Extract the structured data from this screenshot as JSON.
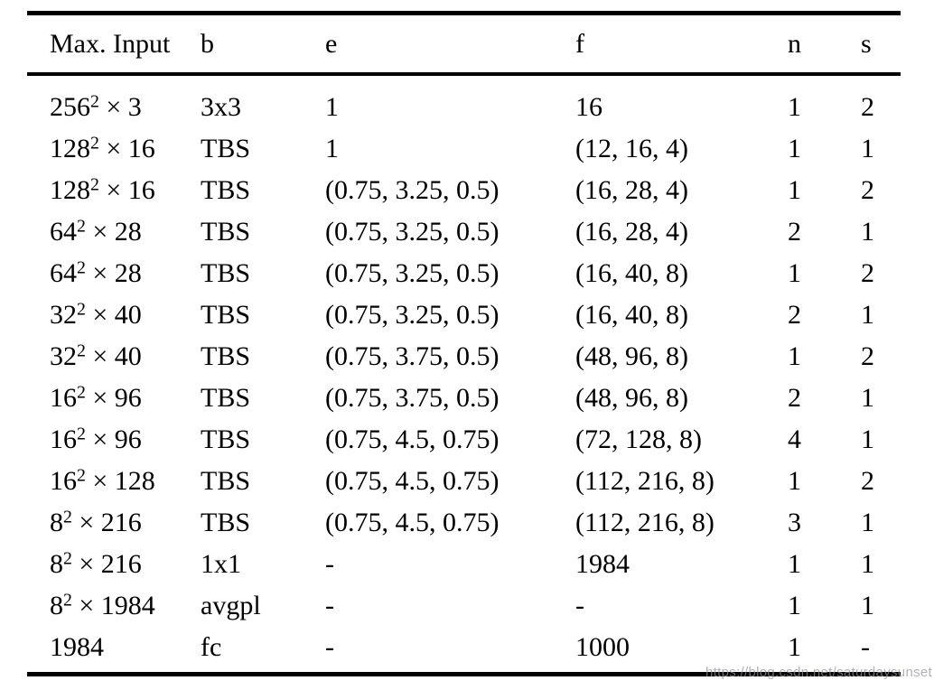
{
  "table": {
    "columns": [
      {
        "key": "max_input",
        "label": "Max. Input"
      },
      {
        "key": "b",
        "label": "b"
      },
      {
        "key": "e",
        "label": "e"
      },
      {
        "key": "f",
        "label": "f"
      },
      {
        "key": "n",
        "label": "n"
      },
      {
        "key": "s",
        "label": "s"
      }
    ],
    "rows": [
      {
        "input_base": "256",
        "input_sup": "2",
        "input_rest": "× 3",
        "b": "3x3",
        "e": "1",
        "f": "16",
        "n": "1",
        "s": "2"
      },
      {
        "input_base": "128",
        "input_sup": "2",
        "input_rest": "× 16",
        "b": "TBS",
        "e": "1",
        "f": "(12, 16, 4)",
        "n": "1",
        "s": "1"
      },
      {
        "input_base": "128",
        "input_sup": "2",
        "input_rest": "× 16",
        "b": "TBS",
        "e": "(0.75, 3.25, 0.5)",
        "f": "(16, 28, 4)",
        "n": "1",
        "s": "2"
      },
      {
        "input_base": "64",
        "input_sup": "2",
        "input_rest": "× 28",
        "b": "TBS",
        "e": "(0.75, 3.25, 0.5)",
        "f": "(16, 28, 4)",
        "n": "2",
        "s": "1"
      },
      {
        "input_base": "64",
        "input_sup": "2",
        "input_rest": "× 28",
        "b": "TBS",
        "e": "(0.75, 3.25, 0.5)",
        "f": "(16, 40, 8)",
        "n": "1",
        "s": "2"
      },
      {
        "input_base": "32",
        "input_sup": "2",
        "input_rest": "× 40",
        "b": "TBS",
        "e": "(0.75, 3.25, 0.5)",
        "f": "(16, 40, 8)",
        "n": "2",
        "s": "1"
      },
      {
        "input_base": "32",
        "input_sup": "2",
        "input_rest": "× 40",
        "b": "TBS",
        "e": "(0.75, 3.75, 0.5)",
        "f": "(48, 96, 8)",
        "n": "1",
        "s": "2"
      },
      {
        "input_base": "16",
        "input_sup": "2",
        "input_rest": "× 96",
        "b": "TBS",
        "e": "(0.75, 3.75, 0.5)",
        "f": "(48, 96, 8)",
        "n": "2",
        "s": "1"
      },
      {
        "input_base": "16",
        "input_sup": "2",
        "input_rest": "× 96",
        "b": "TBS",
        "e": "(0.75, 4.5, 0.75)",
        "f": "(72, 128, 8)",
        "n": "4",
        "s": "1"
      },
      {
        "input_base": "16",
        "input_sup": "2",
        "input_rest": "× 128",
        "b": "TBS",
        "e": "(0.75, 4.5, 0.75)",
        "f": "(112, 216, 8)",
        "n": "1",
        "s": "2"
      },
      {
        "input_base": "8",
        "input_sup": "2",
        "input_rest": "× 216",
        "b": "TBS",
        "e": "(0.75, 4.5, 0.75)",
        "f": "(112, 216, 8)",
        "n": "3",
        "s": "1"
      },
      {
        "input_base": "8",
        "input_sup": "2",
        "input_rest": "× 216",
        "b": "1x1",
        "e": "-",
        "f": "1984",
        "n": "1",
        "s": "1"
      },
      {
        "input_base": "8",
        "input_sup": "2",
        "input_rest": "× 1984",
        "b": "avgpl",
        "e": "-",
        "f": "-",
        "n": "1",
        "s": "1"
      },
      {
        "input_base": "1984",
        "input_sup": "",
        "input_rest": "",
        "b": "fc",
        "e": "-",
        "f": "1000",
        "n": "1",
        "s": "-"
      }
    ]
  },
  "watermark": {
    "text": "https://blog.csdn.net/saturdaysunset"
  },
  "colors": {
    "background": "#ffffff",
    "text": "#000000",
    "rule": "#000000",
    "watermark_gray": "#94949e"
  }
}
